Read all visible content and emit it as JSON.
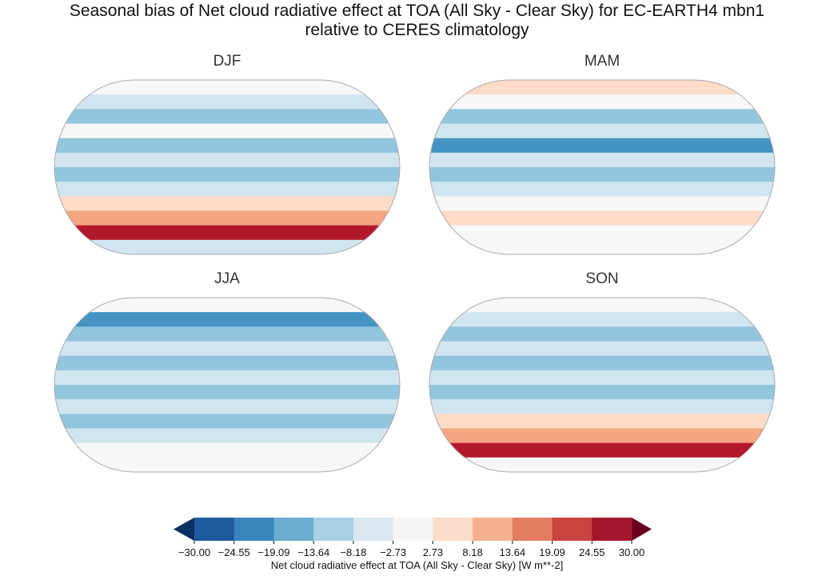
{
  "title_line1": "Seasonal bias of Net cloud radiative effect at TOA (All Sky - Clear Sky) for EC-EARTH4 mbn1",
  "title_line2": "relative to CERES climatology",
  "panels": [
    {
      "season": "DJF",
      "bands": [
        "#f7f7f7",
        "#d1e5f0",
        "#92c5de",
        "#f7f7f7",
        "#92c5de",
        "#d1e5f0",
        "#92c5de",
        "#d1e5f0",
        "#fddbc7",
        "#f4a582",
        "#b2182b",
        "#d1e5f0"
      ]
    },
    {
      "season": "MAM",
      "bands": [
        "#fddbc7",
        "#f7f7f7",
        "#92c5de",
        "#d1e5f0",
        "#4393c3",
        "#d1e5f0",
        "#92c5de",
        "#d1e5f0",
        "#f7f7f7",
        "#fddbc7",
        "#f7f7f7",
        "#f7f7f7"
      ]
    },
    {
      "season": "JJA",
      "bands": [
        "#f7f7f7",
        "#4393c3",
        "#92c5de",
        "#d1e5f0",
        "#92c5de",
        "#d1e5f0",
        "#92c5de",
        "#d1e5f0",
        "#92c5de",
        "#d1e5f0",
        "#f7f7f7",
        "#f7f7f7"
      ]
    },
    {
      "season": "SON",
      "bands": [
        "#f7f7f7",
        "#d1e5f0",
        "#92c5de",
        "#d1e5f0",
        "#92c5de",
        "#d1e5f0",
        "#92c5de",
        "#d1e5f0",
        "#fddbc7",
        "#f4a582",
        "#b2182b",
        "#f7f7f7"
      ]
    }
  ],
  "colorbar": {
    "label": "Net cloud radiative effect at TOA (All Sky - Clear Sky) [W m**-2]",
    "ticks": [
      "−30.00",
      "−24.55",
      "−19.09",
      "−13.64",
      "−8.18",
      "−2.73",
      "2.73",
      "8.18",
      "13.64",
      "19.09",
      "24.55",
      "30.00"
    ],
    "colors": [
      "#1f5a9c",
      "#3a84bd",
      "#6caed2",
      "#a9d0e5",
      "#d8e7f0",
      "#f5f5f5",
      "#fbdcc8",
      "#f5b08f",
      "#e27d63",
      "#c8443e",
      "#a2172c"
    ],
    "extend_low_color": "#0b3161",
    "extend_high_color": "#67001f"
  }
}
